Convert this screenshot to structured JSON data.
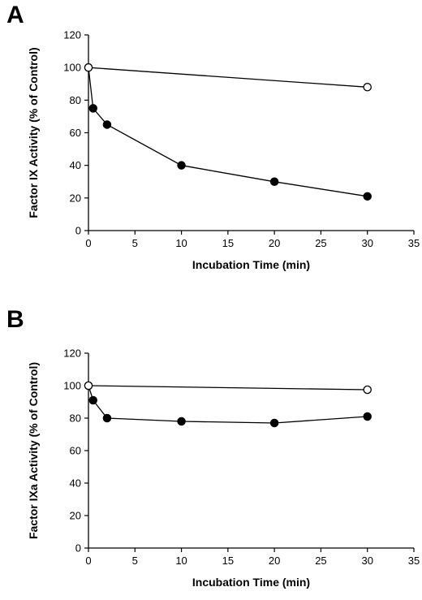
{
  "chart_data": [
    {
      "panel_label": "A",
      "type": "line",
      "ylabel": "Factor IX Activity (% of Control)",
      "xlabel": "Incubation Time (min)",
      "xlim": [
        0,
        35
      ],
      "ylim": [
        0,
        120
      ],
      "xticks": [
        "0",
        "5",
        "10",
        "15",
        "20",
        "25",
        "30",
        "35"
      ],
      "yticks": [
        "0",
        "20",
        "40",
        "60",
        "80",
        "100",
        "120"
      ],
      "grid": false,
      "series": [
        {
          "marker": "open-circle",
          "x": [
            0,
            30
          ],
          "y": [
            100,
            88
          ]
        },
        {
          "marker": "filled-circle",
          "x": [
            0,
            0.5,
            2,
            10,
            20,
            30
          ],
          "y": [
            100,
            75,
            65,
            40,
            30,
            21
          ]
        }
      ]
    },
    {
      "panel_label": "B",
      "type": "line",
      "ylabel": "Factor IXa Activity (% of Control)",
      "xlabel": "Incubation Time (min)",
      "xlim": [
        0,
        35
      ],
      "ylim": [
        0,
        120
      ],
      "xticks": [
        "0",
        "5",
        "10",
        "15",
        "20",
        "25",
        "30",
        "35"
      ],
      "yticks": [
        "0",
        "20",
        "40",
        "60",
        "80",
        "100",
        "120"
      ],
      "grid": false,
      "series": [
        {
          "marker": "open-circle",
          "x": [
            0,
            30
          ],
          "y": [
            100,
            97.5
          ]
        },
        {
          "marker": "filled-circle",
          "x": [
            0,
            0.5,
            2,
            10,
            20,
            30
          ],
          "y": [
            100,
            91,
            80,
            78,
            77,
            81
          ]
        }
      ]
    }
  ]
}
